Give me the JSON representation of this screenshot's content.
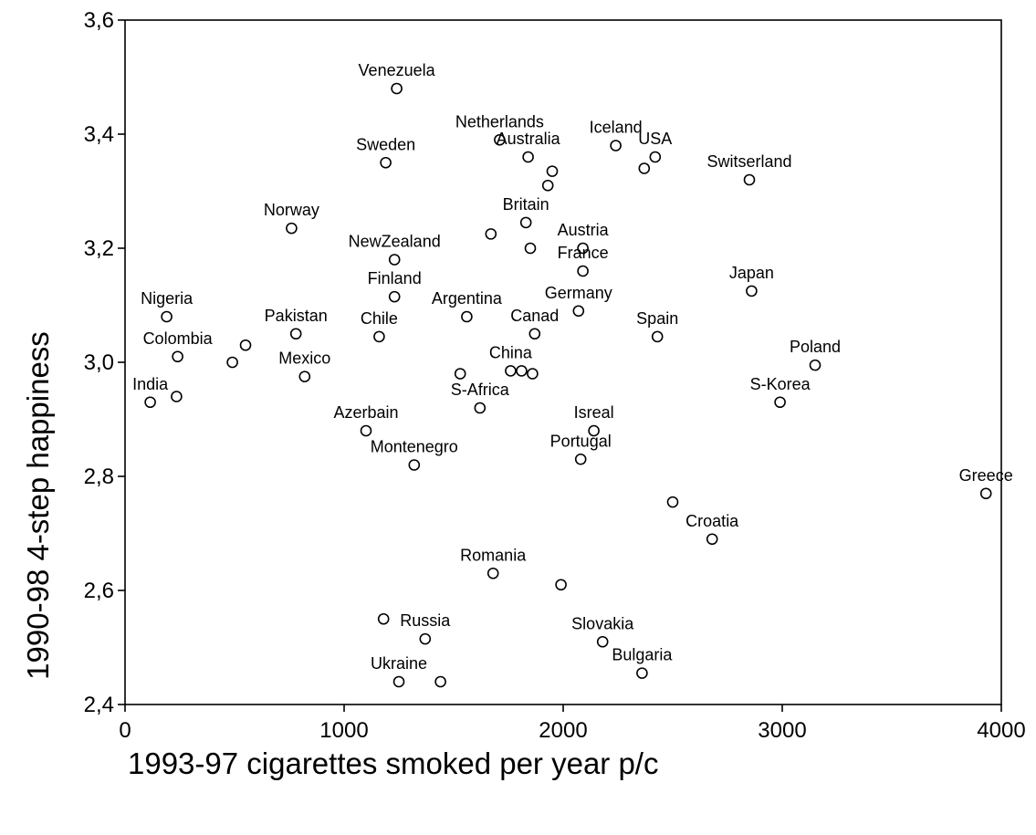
{
  "chart_data": {
    "type": "scatter",
    "title": "",
    "xlabel": "1993-97  cigarettes smoked per year p/c",
    "ylabel": "1990-98 4-step happiness",
    "xlim": [
      0,
      4000
    ],
    "ylim": [
      2.4,
      3.6
    ],
    "xticks": [
      0,
      1000,
      2000,
      3000,
      4000
    ],
    "xtick_labels": [
      "0",
      "1000",
      "2000",
      "3000",
      "4000"
    ],
    "yticks": [
      2.4,
      2.6,
      2.8,
      3.0,
      3.2,
      3.4,
      3.6
    ],
    "ytick_labels": [
      "2,4",
      "2,6",
      "2,8",
      "3,0",
      "3,2",
      "3,4",
      "3,6"
    ],
    "grid": false,
    "legend": "none",
    "points": [
      {
        "label": "Venezuela",
        "x": 1240,
        "y": 3.48
      },
      {
        "label": "Netherlands",
        "x": 1710,
        "y": 3.39
      },
      {
        "label": "Iceland",
        "x": 2240,
        "y": 3.38
      },
      {
        "label": "Sweden",
        "x": 1190,
        "y": 3.35
      },
      {
        "label": "Australia",
        "x": 1840,
        "y": 3.36
      },
      {
        "label": "USA",
        "x": 2420,
        "y": 3.36
      },
      {
        "label": "",
        "x": 2370,
        "y": 3.34
      },
      {
        "label": "",
        "x": 1950,
        "y": 3.335
      },
      {
        "label": "Switserland",
        "x": 2850,
        "y": 3.32
      },
      {
        "label": "",
        "x": 1930,
        "y": 3.31
      },
      {
        "label": "Norway",
        "x": 760,
        "y": 3.235
      },
      {
        "label": "Britain",
        "x": 1830,
        "y": 3.245
      },
      {
        "label": "",
        "x": 1670,
        "y": 3.225
      },
      {
        "label": "Austria",
        "x": 2090,
        "y": 3.2
      },
      {
        "label": "",
        "x": 1850,
        "y": 3.2
      },
      {
        "label": "NewZealand",
        "x": 1230,
        "y": 3.18
      },
      {
        "label": "France",
        "x": 2090,
        "y": 3.16
      },
      {
        "label": "Japan",
        "x": 2860,
        "y": 3.125
      },
      {
        "label": "Finland",
        "x": 1230,
        "y": 3.115
      },
      {
        "label": "Germany",
        "x": 2070,
        "y": 3.09
      },
      {
        "label": "Argentina",
        "x": 1560,
        "y": 3.08
      },
      {
        "label": "Nigeria",
        "x": 190,
        "y": 3.08
      },
      {
        "label": "Canad",
        "x": 1870,
        "y": 3.05
      },
      {
        "label": "Pakistan",
        "x": 780,
        "y": 3.05
      },
      {
        "label": "Chile",
        "x": 1160,
        "y": 3.045
      },
      {
        "label": "Spain",
        "x": 2430,
        "y": 3.045
      },
      {
        "label": "",
        "x": 550,
        "y": 3.03
      },
      {
        "label": "Colombia",
        "x": 240,
        "y": 3.01
      },
      {
        "label": "",
        "x": 490,
        "y": 3.0
      },
      {
        "label": "Poland",
        "x": 3150,
        "y": 2.995
      },
      {
        "label": "China",
        "x": 1760,
        "y": 2.985
      },
      {
        "label": "",
        "x": 1810,
        "y": 2.985
      },
      {
        "label": "",
        "x": 1530,
        "y": 2.98
      },
      {
        "label": "",
        "x": 1860,
        "y": 2.98
      },
      {
        "label": "Mexico",
        "x": 820,
        "y": 2.975
      },
      {
        "label": "India",
        "x": 115,
        "y": 2.93
      },
      {
        "label": "",
        "x": 235,
        "y": 2.94
      },
      {
        "label": "S-Korea",
        "x": 2990,
        "y": 2.93
      },
      {
        "label": "S-Africa",
        "x": 1620,
        "y": 2.92
      },
      {
        "label": "Azerbain",
        "x": 1100,
        "y": 2.88
      },
      {
        "label": "Isreal",
        "x": 2140,
        "y": 2.88
      },
      {
        "label": "Portugal",
        "x": 2080,
        "y": 2.83
      },
      {
        "label": "Montenegro",
        "x": 1320,
        "y": 2.82
      },
      {
        "label": "Greece",
        "x": 3930,
        "y": 2.77
      },
      {
        "label": "",
        "x": 2500,
        "y": 2.755
      },
      {
        "label": "Croatia",
        "x": 2680,
        "y": 2.69
      },
      {
        "label": "Romania",
        "x": 1680,
        "y": 2.63
      },
      {
        "label": "",
        "x": 1990,
        "y": 2.61
      },
      {
        "label": "",
        "x": 1180,
        "y": 2.55
      },
      {
        "label": "Russia",
        "x": 1370,
        "y": 2.515
      },
      {
        "label": "Slovakia",
        "x": 2180,
        "y": 2.51
      },
      {
        "label": "Bulgaria",
        "x": 2360,
        "y": 2.455
      },
      {
        "label": "Ukraine",
        "x": 1250,
        "y": 2.44
      },
      {
        "label": "",
        "x": 1440,
        "y": 2.44
      }
    ]
  }
}
